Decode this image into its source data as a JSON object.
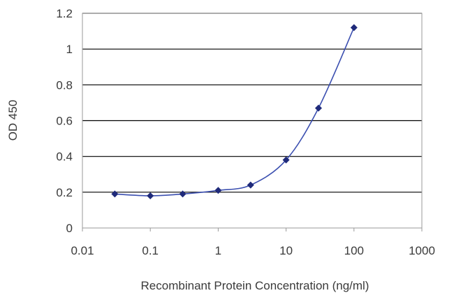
{
  "chart_data": {
    "type": "line",
    "title": "",
    "xlabel": "Recombinant Protein Concentration (ng/ml)",
    "ylabel": "OD 450",
    "x_scale": "log",
    "xlim": [
      0.01,
      1000
    ],
    "ylim": [
      0,
      1.2
    ],
    "x_ticks": [
      "0.01",
      "0.1",
      "1",
      "10",
      "100",
      "1000"
    ],
    "y_ticks": [
      "0",
      "0.2",
      "0.4",
      "0.6",
      "0.8",
      "1",
      "1.2"
    ],
    "grid": "horizontal",
    "legend": "none",
    "series": [
      {
        "x": [
          0.03,
          0.1,
          0.3,
          1,
          3,
          10,
          30,
          100
        ],
        "y": [
          0.19,
          0.18,
          0.19,
          0.21,
          0.24,
          0.38,
          0.67,
          1.12
        ]
      }
    ],
    "colors": {
      "line": "#3b4fb0",
      "marker": "#1f2a7a",
      "grid": "#000000",
      "axis": "#999999",
      "text": "#3a3a3a"
    }
  }
}
